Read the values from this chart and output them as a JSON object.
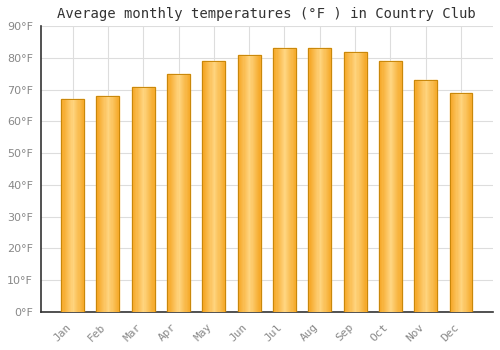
{
  "title": "Average monthly temperatures (°F ) in Country Club",
  "months": [
    "Jan",
    "Feb",
    "Mar",
    "Apr",
    "May",
    "Jun",
    "Jul",
    "Aug",
    "Sep",
    "Oct",
    "Nov",
    "Dec"
  ],
  "values": [
    67,
    68,
    71,
    75,
    79,
    81,
    83,
    83,
    82,
    79,
    73,
    69
  ],
  "bar_color_left": "#F5A623",
  "bar_color_center": "#FFD580",
  "bar_color_right": "#F5A623",
  "bar_edge_color": "#C8870A",
  "background_color": "#FFFFFF",
  "plot_bg_color": "#FFFFFF",
  "ylim": [
    0,
    90
  ],
  "yticks": [
    0,
    10,
    20,
    30,
    40,
    50,
    60,
    70,
    80,
    90
  ],
  "title_fontsize": 10,
  "tick_fontsize": 8,
  "grid_color": "#DDDDDD",
  "bar_width": 0.65,
  "tick_label_color": "#888888",
  "spine_color": "#333333"
}
